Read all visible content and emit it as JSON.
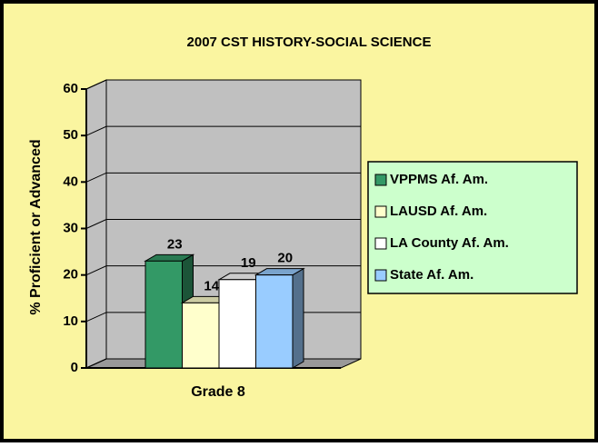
{
  "chart_data": {
    "type": "bar3d",
    "title": "2007 CST HISTORY-SOCIAL SCIENCE",
    "y_label": "% Proficient or Advanced",
    "categories": [
      "Grade 8"
    ],
    "series": [
      {
        "name": "VPPMS Af. Am.",
        "color": "#339966",
        "values": [
          23
        ]
      },
      {
        "name": "LAUSD Af. Am.",
        "color": "#FFFFCC",
        "values": [
          14
        ]
      },
      {
        "name": "LA County Af. Am.",
        "color": "#FFFFFF",
        "values": [
          19
        ]
      },
      {
        "name": "State Af. Am.",
        "color": "#99CCFF",
        "values": [
          20
        ]
      }
    ],
    "ylim": [
      0,
      60
    ],
    "yticks": [
      0,
      10,
      20,
      30,
      40,
      50,
      60
    ],
    "grid": true,
    "legend": "right"
  }
}
